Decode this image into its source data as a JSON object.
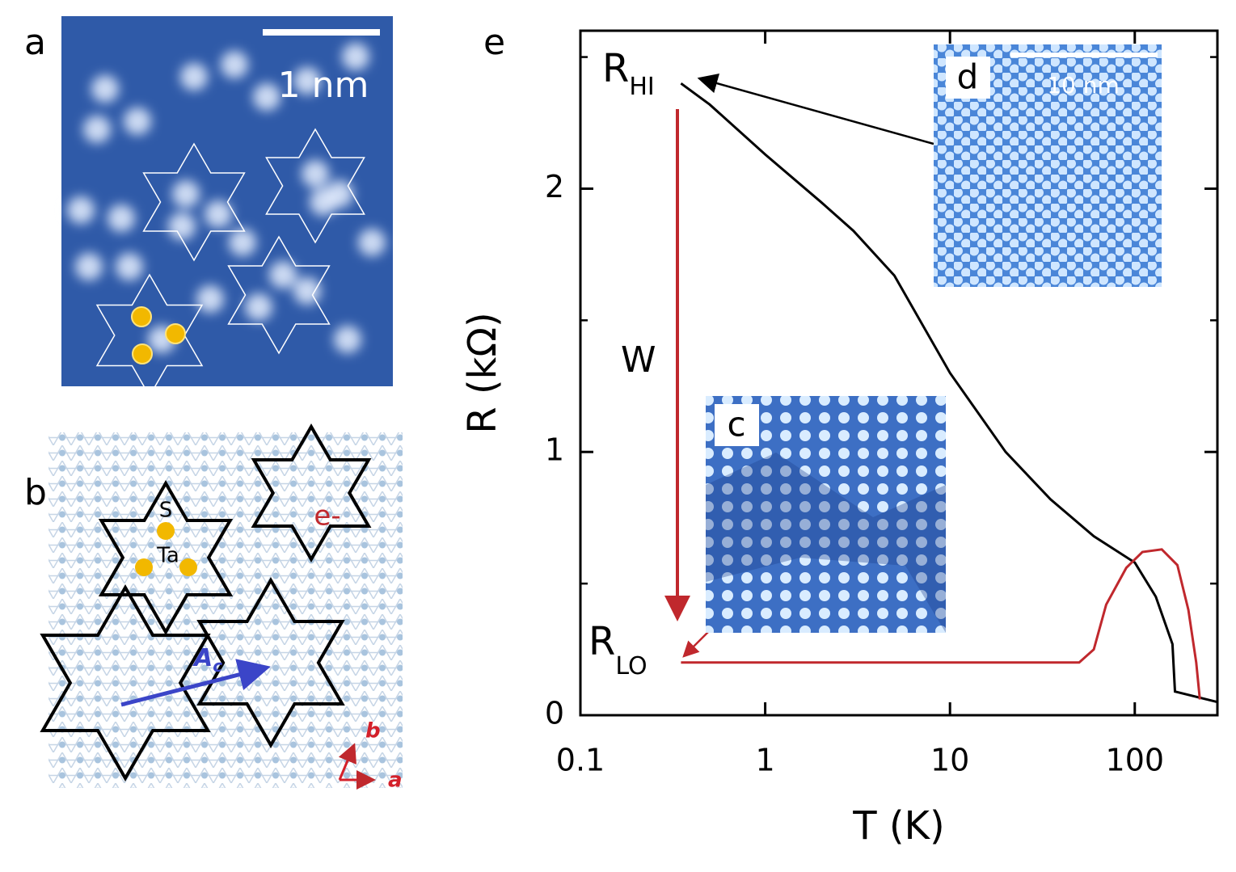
{
  "figure": {
    "panel_a": {
      "label": "a",
      "scale_bar": "1 nm"
    },
    "panel_b": {
      "label": "b",
      "atom_s": "S",
      "atom_ta": "Ta",
      "electron": "e-",
      "vector": "A",
      "vector_sub": "c",
      "axis_b": "b",
      "axis_a": "a"
    },
    "panel_c": {
      "label": "c"
    },
    "panel_d": {
      "label": "d",
      "scale_bar": "10 nm"
    },
    "panel_e": {
      "label": "e"
    }
  },
  "chart_data": {
    "type": "line",
    "xlabel": "T (K)",
    "ylabel": "R (kΩ)",
    "xscale": "log",
    "xlim": [
      0.1,
      280
    ],
    "ylim": [
      0,
      2.6
    ],
    "xticks": [
      0.1,
      1,
      10,
      100
    ],
    "yticks": [
      0,
      1,
      2
    ],
    "yminorticks": [
      0.5,
      1.5,
      2.5
    ],
    "annotations": {
      "r_hi": "R",
      "r_hi_sub": "HI",
      "r_lo": "R",
      "r_lo_sub": "LO",
      "write": "W"
    },
    "series": [
      {
        "color": "#000000",
        "x": [
          0.35,
          0.5,
          1,
          2,
          3,
          5,
          10,
          20,
          35,
          60,
          100,
          130,
          160,
          165,
          280
        ],
        "values": [
          2.4,
          2.32,
          2.13,
          1.95,
          1.84,
          1.67,
          1.3,
          1.0,
          0.82,
          0.68,
          0.58,
          0.45,
          0.27,
          0.09,
          0.05
        ]
      },
      {
        "color": "#c0282d",
        "x": [
          0.35,
          50,
          60,
          70,
          90,
          110,
          140,
          170,
          195,
          215,
          225
        ],
        "values": [
          0.2,
          0.2,
          0.25,
          0.42,
          0.56,
          0.62,
          0.63,
          0.57,
          0.4,
          0.2,
          0.06
        ]
      }
    ]
  }
}
